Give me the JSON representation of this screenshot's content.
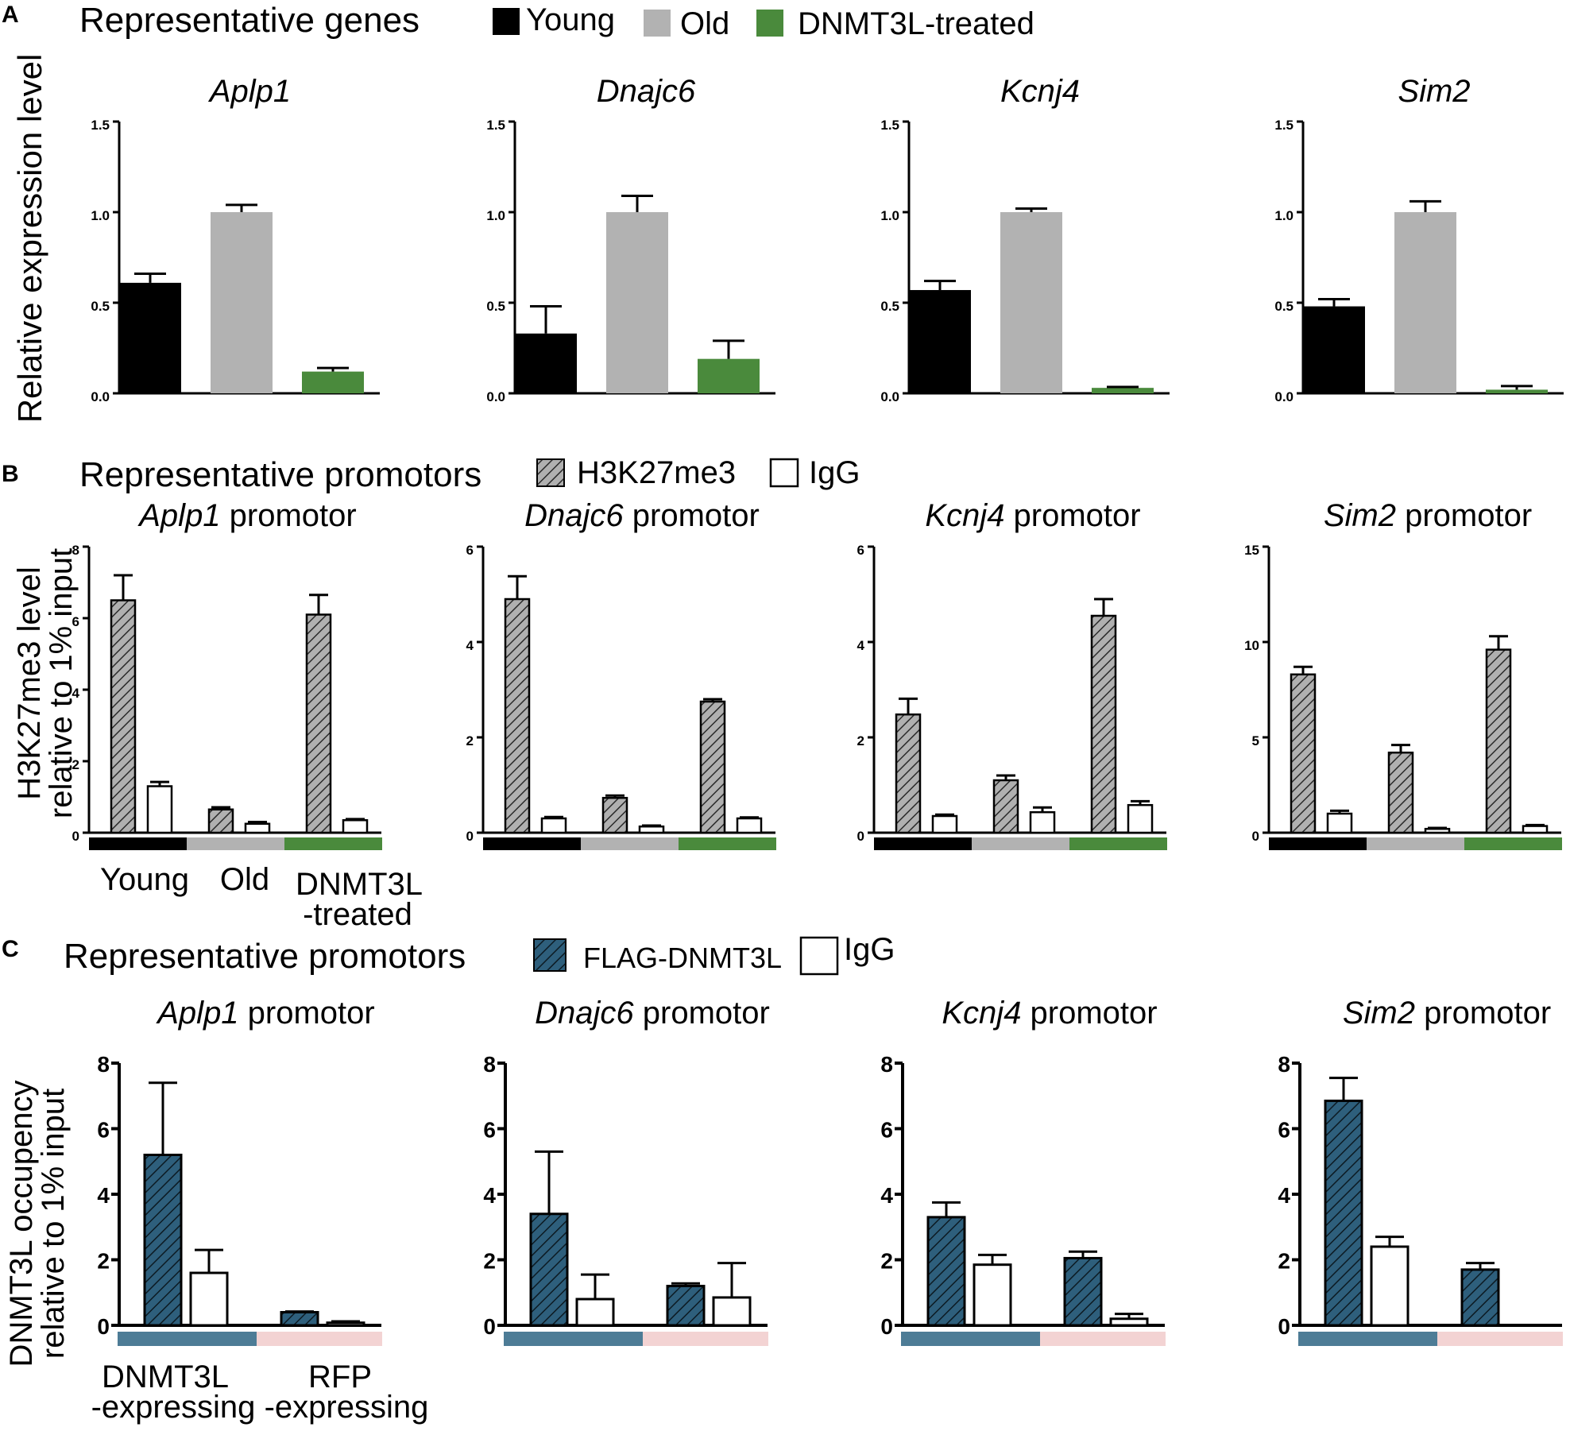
{
  "colors": {
    "young": "#000000",
    "old": "#b2b2b2",
    "dnmt3l_treated": "#4a8a3c",
    "h3k27me3_fill": "#b0b0b0",
    "flag_fill": "#2e5f7c",
    "igg_fill": "#ffffff",
    "dnmt3l_expressing": "#4d7c96",
    "rfp_expressing": "#f3d3d3",
    "axis": "#000000"
  },
  "panels": {
    "A": {
      "letter": "A",
      "header": "Representative genes",
      "legend": [
        {
          "label": "Young",
          "color_key": "young"
        },
        {
          "label": "Old",
          "color_key": "old"
        },
        {
          "label": "DNMT3L-treated",
          "color_key": "dnmt3l_treated"
        }
      ],
      "ylabel": "Relative expression level"
    },
    "B": {
      "letter": "B",
      "header": "Representative promotors",
      "legend": [
        {
          "label": "H3K27me3",
          "pattern": "hatch-grey"
        },
        {
          "label": "IgG",
          "pattern": "open"
        }
      ],
      "ylabel_lines": [
        "H3K27me3 level",
        "relative to 1% input"
      ],
      "group_labels": [
        "Young",
        "Old",
        "DNMT3L",
        "-treated"
      ]
    },
    "C": {
      "letter": "C",
      "header": "Representative promotors",
      "legend": [
        {
          "label": "FLAG-DNMT3L",
          "pattern": "hatch-blue"
        },
        {
          "label": "IgG",
          "pattern": "open"
        }
      ],
      "ylabel_lines": [
        "DNMT3L occupency",
        "relative to 1% input"
      ],
      "group_labels": [
        "DNMT3L",
        "RFP",
        "-expressing",
        "-expressing"
      ]
    }
  },
  "chart_data": [
    {
      "panel": "A",
      "type": "bar",
      "title_italic": "Aplp1",
      "title_rest": "",
      "categories": [
        "Young",
        "Old",
        "DNMT3L-treated"
      ],
      "values": [
        0.61,
        1.0,
        0.12
      ],
      "errors": [
        0.05,
        0.04,
        0.02
      ],
      "ylim": [
        0,
        1.5
      ],
      "yticks": [
        "0.0",
        "0.5",
        "1.0",
        "1.5"
      ],
      "ytick_values": [
        0,
        0.5,
        1.0,
        1.5
      ]
    },
    {
      "panel": "A",
      "type": "bar",
      "title_italic": "Dnajc6",
      "title_rest": "",
      "categories": [
        "Young",
        "Old",
        "DNMT3L-treated"
      ],
      "values": [
        0.33,
        1.0,
        0.19
      ],
      "errors": [
        0.15,
        0.09,
        0.1
      ],
      "ylim": [
        0,
        1.5
      ],
      "yticks": [
        "0.0",
        "0.5",
        "1.0",
        "1.5"
      ],
      "ytick_values": [
        0,
        0.5,
        1.0,
        1.5
      ]
    },
    {
      "panel": "A",
      "type": "bar",
      "title_italic": "Kcnj4",
      "title_rest": "",
      "categories": [
        "Young",
        "Old",
        "DNMT3L-treated"
      ],
      "values": [
        0.57,
        1.0,
        0.03
      ],
      "errors": [
        0.05,
        0.02,
        0.005
      ],
      "ylim": [
        0,
        1.5
      ],
      "yticks": [
        "0.0",
        "0.5",
        "1.0",
        "1.5"
      ],
      "ytick_values": [
        0,
        0.5,
        1.0,
        1.5
      ]
    },
    {
      "panel": "A",
      "type": "bar",
      "title_italic": "Sim2",
      "title_rest": "",
      "categories": [
        "Young",
        "Old",
        "DNMT3L-treated"
      ],
      "values": [
        0.48,
        1.0,
        0.02
      ],
      "errors": [
        0.04,
        0.06,
        0.02
      ],
      "ylim": [
        0,
        1.5
      ],
      "yticks": [
        "0.0",
        "0.5",
        "1.0",
        "1.5"
      ],
      "ytick_values": [
        0,
        0.5,
        1.0,
        1.5
      ]
    },
    {
      "panel": "B",
      "type": "bar",
      "title_italic": "Aplp1",
      "title_rest": " promotor",
      "categories": [
        "Young",
        "Old",
        "DNMT3L-treated"
      ],
      "series": [
        {
          "name": "H3K27me3",
          "values": [
            6.5,
            0.65,
            6.1
          ],
          "errors": [
            0.7,
            0.06,
            0.55
          ]
        },
        {
          "name": "IgG",
          "values": [
            1.3,
            0.25,
            0.35
          ],
          "errors": [
            0.12,
            0.05,
            0.03
          ]
        }
      ],
      "ylim": [
        0,
        8
      ],
      "yticks": [
        "0",
        "2",
        "4",
        "6",
        "8"
      ],
      "ytick_values": [
        0,
        2,
        4,
        6,
        8
      ]
    },
    {
      "panel": "B",
      "type": "bar",
      "title_italic": "Dnajc6",
      "title_rest": " promotor",
      "categories": [
        "Young",
        "Old",
        "DNMT3L-treated"
      ],
      "series": [
        {
          "name": "H3K27me3",
          "values": [
            4.9,
            0.73,
            2.75
          ],
          "errors": [
            0.48,
            0.05,
            0.05
          ]
        },
        {
          "name": "IgG",
          "values": [
            0.3,
            0.13,
            0.3
          ],
          "errors": [
            0.03,
            0.02,
            0.02
          ]
        }
      ],
      "ylim": [
        0,
        6
      ],
      "yticks": [
        "0",
        "2",
        "4",
        "6"
      ],
      "ytick_values": [
        0,
        2,
        4,
        6
      ]
    },
    {
      "panel": "B",
      "type": "bar",
      "title_italic": "Kcnj4",
      "title_rest": " promotor",
      "categories": [
        "Young",
        "Old",
        "DNMT3L-treated"
      ],
      "series": [
        {
          "name": "H3K27me3",
          "values": [
            2.48,
            1.1,
            4.55
          ],
          "errors": [
            0.33,
            0.1,
            0.35
          ]
        },
        {
          "name": "IgG",
          "values": [
            0.35,
            0.43,
            0.58
          ],
          "errors": [
            0.03,
            0.1,
            0.08
          ]
        }
      ],
      "ylim": [
        0,
        6
      ],
      "yticks": [
        "0",
        "2",
        "4",
        "6"
      ],
      "ytick_values": [
        0,
        2,
        4,
        6
      ]
    },
    {
      "panel": "B",
      "type": "bar",
      "title_italic": "Sim2",
      "title_rest": " promotor",
      "categories": [
        "Young",
        "Old",
        "DNMT3L-treated"
      ],
      "series": [
        {
          "name": "H3K27me3",
          "values": [
            8.3,
            4.2,
            9.6
          ],
          "errors": [
            0.4,
            0.4,
            0.7
          ]
        },
        {
          "name": "IgG",
          "values": [
            1.0,
            0.2,
            0.35
          ],
          "errors": [
            0.15,
            0.05,
            0.05
          ]
        }
      ],
      "ylim": [
        0,
        15
      ],
      "yticks": [
        "0",
        "5",
        "10",
        "15"
      ],
      "ytick_values": [
        0,
        5,
        10,
        15
      ]
    },
    {
      "panel": "C",
      "type": "bar",
      "title_italic": "Aplp1",
      "title_rest": " promotor",
      "categories": [
        "DNMT3L-expressing",
        "RFP-expressing"
      ],
      "series": [
        {
          "name": "FLAG-DNMT3L",
          "values": [
            5.2,
            0.4
          ],
          "errors": [
            2.2,
            0.02
          ]
        },
        {
          "name": "IgG",
          "values": [
            1.6,
            0.08
          ],
          "errors": [
            0.7,
            0.04
          ]
        }
      ],
      "ylim": [
        0,
        8
      ],
      "yticks": [
        "0",
        "2",
        "4",
        "6",
        "8"
      ],
      "ytick_values": [
        0,
        2,
        4,
        6,
        8
      ]
    },
    {
      "panel": "C",
      "type": "bar",
      "title_italic": "Dnajc6",
      "title_rest": " promotor",
      "categories": [
        "DNMT3L-expressing",
        "RFP-expressing"
      ],
      "series": [
        {
          "name": "FLAG-DNMT3L",
          "values": [
            3.4,
            1.2
          ],
          "errors": [
            1.9,
            0.08
          ]
        },
        {
          "name": "IgG",
          "values": [
            0.8,
            0.85
          ],
          "errors": [
            0.75,
            1.05
          ]
        }
      ],
      "ylim": [
        0,
        8
      ],
      "yticks": [
        "0",
        "2",
        "4",
        "6",
        "8"
      ],
      "ytick_values": [
        0,
        2,
        4,
        6,
        8
      ]
    },
    {
      "panel": "C",
      "type": "bar",
      "title_italic": "Kcnj4",
      "title_rest": " promotor",
      "categories": [
        "DNMT3L-expressing",
        "RFP-expressing"
      ],
      "series": [
        {
          "name": "FLAG-DNMT3L",
          "values": [
            3.3,
            2.05
          ],
          "errors": [
            0.45,
            0.2
          ]
        },
        {
          "name": "IgG",
          "values": [
            1.85,
            0.2
          ],
          "errors": [
            0.3,
            0.15
          ]
        }
      ],
      "ylim": [
        0,
        8
      ],
      "yticks": [
        "0",
        "2",
        "4",
        "6",
        "8"
      ],
      "ytick_values": [
        0,
        2,
        4,
        6,
        8
      ]
    },
    {
      "panel": "C",
      "type": "bar",
      "title_italic": "Sim2",
      "title_rest": " promotor",
      "categories": [
        "DNMT3L-expressing",
        "RFP-expressing"
      ],
      "series": [
        {
          "name": "FLAG-DNMT3L",
          "values": [
            6.85,
            1.7
          ],
          "errors": [
            0.7,
            0.2
          ]
        },
        {
          "name": "IgG",
          "values": [
            2.4,
            null
          ],
          "errors": [
            0.3,
            null
          ]
        }
      ],
      "ylim": [
        0,
        8
      ],
      "yticks": [
        "0",
        "2",
        "4",
        "6",
        "8"
      ],
      "ytick_values": [
        0,
        2,
        4,
        6,
        8
      ]
    }
  ]
}
